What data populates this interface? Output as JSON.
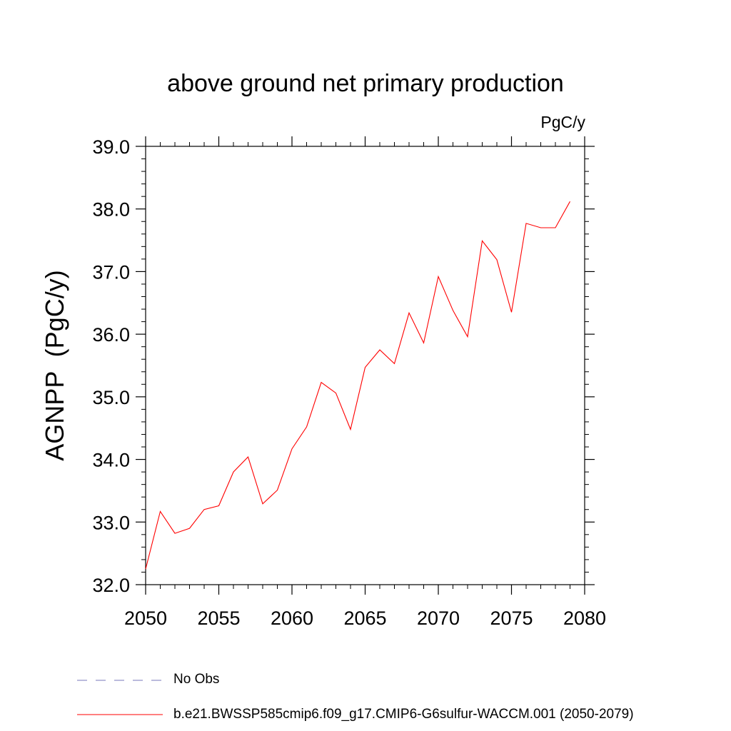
{
  "chart_data": {
    "type": "line",
    "title": "above ground net primary production",
    "units_label": "PgC/y",
    "ylabel": "AGNPP  (PgC/y)",
    "xlabel": "",
    "xlim": [
      2050,
      2080
    ],
    "ylim": [
      32.0,
      39.0
    ],
    "x_ticks": [
      2050,
      2055,
      2060,
      2065,
      2070,
      2075,
      2080
    ],
    "x_tick_labels": [
      "2050",
      "2055",
      "2060",
      "2065",
      "2070",
      "2075",
      "2080"
    ],
    "y_ticks": [
      32.0,
      33.0,
      34.0,
      35.0,
      36.0,
      37.0,
      38.0,
      39.0
    ],
    "y_tick_labels": [
      "32.0",
      "33.0",
      "34.0",
      "35.0",
      "36.0",
      "37.0",
      "38.0",
      "39.0"
    ],
    "grid": false,
    "legend_position": "bottom",
    "series": [
      {
        "name": "b.e21.BWSSP585cmip6.f09_g17.CMIP6-G6sulfur-WACCM.001 (2050-2079)",
        "color": "#ff0000",
        "style": "solid",
        "x": [
          2050,
          2051,
          2052,
          2053,
          2054,
          2055,
          2056,
          2057,
          2058,
          2059,
          2060,
          2061,
          2062,
          2063,
          2064,
          2065,
          2066,
          2067,
          2068,
          2069,
          2070,
          2071,
          2072,
          2073,
          2074,
          2075,
          2076,
          2077,
          2078,
          2079
        ],
        "values": [
          32.25,
          33.17,
          32.82,
          32.9,
          33.2,
          33.26,
          33.8,
          34.04,
          33.29,
          33.51,
          34.17,
          34.52,
          35.23,
          35.06,
          34.48,
          35.47,
          35.75,
          35.53,
          36.34,
          35.86,
          36.92,
          36.38,
          35.96,
          37.49,
          37.19,
          36.35,
          37.77,
          37.7,
          37.7,
          38.12
        ]
      }
    ],
    "legend": [
      {
        "label": "No Obs",
        "color": "#7777bb",
        "style": "dashed"
      },
      {
        "label": "b.e21.BWSSP585cmip6.f09_g17.CMIP6-G6sulfur-WACCM.001 (2050-2079)",
        "color": "#ff0000",
        "style": "solid"
      }
    ]
  }
}
